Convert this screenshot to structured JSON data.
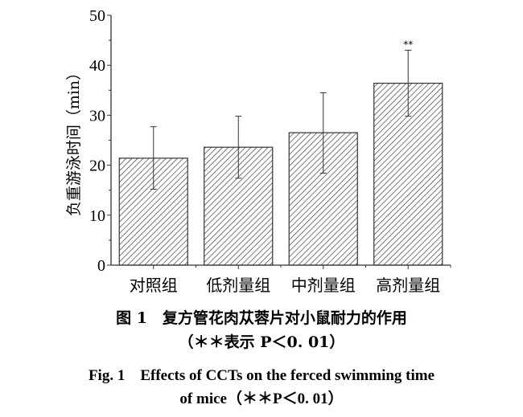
{
  "chart_data": {
    "type": "bar",
    "categories": [
      "对照组",
      "低剂量组",
      "中剂量组",
      "高剂量组"
    ],
    "values": [
      21.4,
      23.6,
      26.5,
      36.4
    ],
    "error_upper": [
      27.7,
      29.8,
      34.5,
      43.0
    ],
    "error_lower": [
      15.2,
      17.4,
      18.4,
      29.8
    ],
    "annotations": [
      "",
      "",
      "",
      "**"
    ],
    "ylabel": "负重游泳时间（min）",
    "xlabel": "",
    "ylim": [
      0,
      50
    ],
    "yticks": [
      0,
      10,
      20,
      30,
      40,
      50
    ],
    "grid": false,
    "bar_fill": "hatched",
    "color": "#333333"
  },
  "caption": {
    "cn_title": "图 1　复方管花肉苁蓉片对小鼠耐力的作用",
    "cn_note": "（＊＊表示 P＜0. 01）",
    "en_title_line1": "Fig. 1　Effects of CCTs on the ferced swimming time",
    "en_title_line2": "of mice（＊＊P＜0. 01）"
  }
}
